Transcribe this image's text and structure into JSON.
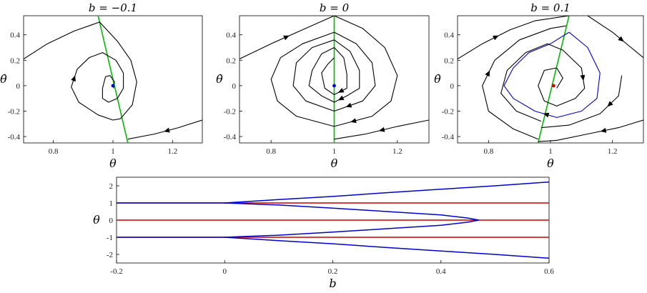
{
  "chart_data": [
    {
      "type": "line",
      "title": "b = −0.1",
      "xlabel": "θ",
      "ylabel": "θ̇",
      "xlim": [
        0.7,
        1.3
      ],
      "ylim": [
        -0.45,
        0.55
      ],
      "xticks": [
        "0.8",
        "1",
        "1.2"
      ],
      "yticks": [
        "-0.4",
        "-0.2",
        "0",
        "0.2",
        "0.4"
      ],
      "colors": {
        "trajectory": "#000000",
        "nullcline": "#00bb00",
        "equilibrium": "#0000cc"
      },
      "nullcline": [
        [
          0.95,
          0.55
        ],
        [
          1.05,
          -0.45
        ]
      ],
      "equilibrium": {
        "x": 1.0,
        "y": 0.0,
        "color": "#0000cc"
      },
      "series": [
        {
          "points": [
            [
              0.7,
              0.21
            ],
            [
              0.78,
              0.33
            ],
            [
              0.87,
              0.43
            ],
            [
              0.955,
              0.5
            ],
            [
              1.015,
              0.35
            ],
            [
              1.06,
              0.2
            ],
            [
              1.08,
              0.03
            ],
            [
              1.065,
              -0.15
            ],
            [
              1.025,
              -0.26
            ],
            [
              1.0,
              -0.27
            ],
            [
              0.95,
              -0.23
            ],
            [
              0.885,
              -0.13
            ],
            [
              0.86,
              -0.01
            ],
            [
              0.88,
              0.13
            ],
            [
              0.92,
              0.22
            ],
            [
              0.965,
              0.26
            ],
            [
              1.01,
              0.2
            ],
            [
              1.035,
              0.1
            ],
            [
              1.035,
              -0.02
            ],
            [
              1.015,
              -0.1
            ],
            [
              0.985,
              -0.13
            ],
            [
              0.965,
              -0.1
            ],
            [
              0.965,
              -0.02
            ],
            [
              0.975,
              0.07
            ],
            [
              0.99,
              0.08
            ],
            [
              1.005,
              0.03
            ],
            [
              1.002,
              -0.02
            ]
          ]
        },
        {
          "points": [
            [
              1.3,
              -0.27
            ],
            [
              1.22,
              -0.33
            ],
            [
              1.14,
              -0.38
            ],
            [
              1.05,
              -0.42
            ]
          ]
        }
      ]
    },
    {
      "type": "line",
      "title": "b = 0",
      "xlabel": "θ",
      "ylabel": "θ̇",
      "xlim": [
        0.7,
        1.3
      ],
      "ylim": [
        -0.45,
        0.55
      ],
      "xticks": [
        "0.8",
        "1",
        "1.2"
      ],
      "yticks": [
        "-0.4",
        "-0.2",
        "0",
        "0.2",
        "0.4"
      ],
      "colors": {
        "trajectory": "#000000",
        "nullcline": "#00bb00",
        "equilibrium": "#0000cc"
      },
      "nullcline": [
        [
          1.0,
          0.55
        ],
        [
          1.0,
          -0.45
        ]
      ],
      "equilibrium": {
        "x": 1.0,
        "y": 0.0,
        "color": "#0000cc"
      },
      "series": [
        {
          "points": [
            [
              0.7,
              0.21
            ],
            [
              0.8,
              0.33
            ],
            [
              0.9,
              0.44
            ],
            [
              1.0,
              0.55
            ]
          ]
        },
        {
          "points": [
            [
              1.0,
              0.55
            ],
            [
              1.09,
              0.45
            ],
            [
              1.16,
              0.3
            ],
            [
              1.2,
              0.08
            ],
            [
              1.18,
              -0.12
            ],
            [
              1.12,
              -0.24
            ],
            [
              1.0,
              -0.32
            ],
            [
              0.88,
              -0.24
            ],
            [
              0.82,
              -0.12
            ],
            [
              0.8,
              0.05
            ],
            [
              0.83,
              0.22
            ],
            [
              0.9,
              0.33
            ],
            [
              1.0,
              0.42
            ]
          ]
        },
        {
          "points": [
            [
              1.0,
              0.42
            ],
            [
              1.07,
              0.33
            ],
            [
              1.12,
              0.18
            ],
            [
              1.13,
              0.0
            ],
            [
              1.09,
              -0.12
            ],
            [
              1.0,
              -0.2
            ],
            [
              0.91,
              -0.12
            ],
            [
              0.87,
              0.0
            ],
            [
              0.88,
              0.18
            ],
            [
              0.93,
              0.3
            ],
            [
              1.0,
              0.36
            ]
          ]
        },
        {
          "points": [
            [
              1.0,
              0.36
            ],
            [
              1.05,
              0.27
            ],
            [
              1.08,
              0.12
            ],
            [
              1.08,
              -0.02
            ],
            [
              1.04,
              -0.08
            ],
            [
              1.0,
              -0.13
            ],
            [
              0.96,
              -0.08
            ],
            [
              0.92,
              0.0
            ],
            [
              0.93,
              0.12
            ],
            [
              0.96,
              0.25
            ],
            [
              1.0,
              0.3
            ]
          ]
        },
        {
          "points": [
            [
              1.0,
              0.3
            ],
            [
              1.03,
              0.22
            ],
            [
              1.04,
              0.09
            ],
            [
              1.04,
              -0.02
            ],
            [
              1.0,
              -0.07
            ],
            [
              0.97,
              -0.02
            ],
            [
              0.96,
              0.1
            ],
            [
              0.98,
              0.17
            ],
            [
              1.0,
              0.22
            ]
          ]
        },
        {
          "points": [
            [
              1.3,
              -0.27
            ],
            [
              1.2,
              -0.32
            ],
            [
              1.1,
              -0.38
            ],
            [
              1.0,
              -0.42
            ]
          ]
        }
      ]
    },
    {
      "type": "line",
      "title": "b = 0.1",
      "xlabel": "θ",
      "ylabel": "θ̇",
      "xlim": [
        0.7,
        1.3
      ],
      "ylim": [
        -0.45,
        0.55
      ],
      "xticks": [
        "0.8",
        "1",
        "1.2"
      ],
      "yticks": [
        "-0.4",
        "-0.2",
        "0",
        "0.2",
        "0.4"
      ],
      "colors": {
        "trajectory": "#000000",
        "nullcline": "#00bb00",
        "equilibrium": "#cc0000",
        "separatrix": "#0000cc"
      },
      "nullcline": [
        [
          0.96,
          -0.45
        ],
        [
          1.06,
          0.55
        ]
      ],
      "equilibrium": {
        "x": 1.01,
        "y": 0.0,
        "color": "#cc0000"
      },
      "series": [
        {
          "points": [
            [
              0.7,
              0.21
            ],
            [
              0.78,
              0.33
            ],
            [
              0.87,
              0.44
            ],
            [
              0.95,
              0.51
            ],
            [
              1.06,
              0.55
            ]
          ]
        },
        {
          "points": [
            [
              1.12,
              0.55
            ],
            [
              1.2,
              0.42
            ],
            [
              1.26,
              0.3
            ],
            [
              1.3,
              0.22
            ]
          ]
        },
        {
          "points": [
            [
              1.06,
              0.42
            ],
            [
              1.12,
              0.3
            ],
            [
              1.16,
              0.1
            ],
            [
              1.15,
              -0.1
            ],
            [
              1.1,
              -0.2
            ],
            [
              1.02,
              -0.25
            ],
            [
              0.95,
              -0.2
            ],
            [
              0.88,
              -0.1
            ],
            [
              0.85,
              0.0
            ],
            [
              0.88,
              0.14
            ],
            [
              0.93,
              0.26
            ],
            [
              1.0,
              0.33
            ],
            [
              1.06,
              0.42
            ]
          ],
          "color": "#0000cc"
        },
        {
          "points": [
            [
              1.3,
              -0.27
            ],
            [
              1.22,
              -0.33
            ],
            [
              1.12,
              -0.38
            ],
            [
              1.02,
              -0.43
            ],
            [
              0.96,
              -0.44
            ]
          ]
        },
        {
          "points": [
            [
              0.96,
              -0.42
            ],
            [
              0.88,
              -0.34
            ],
            [
              0.8,
              -0.2
            ],
            [
              0.78,
              0.0
            ],
            [
              0.82,
              0.2
            ],
            [
              0.9,
              0.36
            ],
            [
              1.0,
              0.45
            ],
            [
              1.05,
              0.47
            ]
          ]
        },
        {
          "points": [
            [
              1.23,
              0.08
            ],
            [
              1.22,
              -0.08
            ],
            [
              1.16,
              -0.22
            ],
            [
              1.06,
              -0.31
            ],
            [
              0.97,
              -0.33
            ]
          ]
        },
        {
          "points": [
            [
              0.97,
              -0.28
            ],
            [
              0.89,
              -0.2
            ],
            [
              0.84,
              -0.06
            ],
            [
              0.86,
              0.12
            ],
            [
              0.92,
              0.26
            ],
            [
              0.99,
              0.33
            ],
            [
              1.04,
              0.28
            ],
            [
              1.1,
              0.14
            ],
            [
              1.11,
              -0.02
            ],
            [
              1.08,
              -0.1
            ],
            [
              1.02,
              -0.16
            ],
            [
              0.98,
              -0.12
            ],
            [
              0.96,
              0.0
            ],
            [
              0.98,
              0.12
            ],
            [
              1.02,
              0.14
            ],
            [
              1.04,
              0.06
            ],
            [
              1.02,
              -0.02
            ]
          ]
        }
      ]
    },
    {
      "type": "line",
      "title": "",
      "xlabel": "b",
      "ylabel": "θ",
      "xlim": [
        -0.2,
        0.6
      ],
      "ylim": [
        -2.5,
        2.5
      ],
      "xticks": [
        "-0.2",
        "0",
        "0.2",
        "0.4",
        "0.6"
      ],
      "yticks": [
        "-2",
        "-1",
        "0",
        "1",
        "2"
      ],
      "series": [
        {
          "color": "#cc0000",
          "points": [
            [
              -0.2,
              1
            ],
            [
              0.6,
              1
            ]
          ]
        },
        {
          "color": "#cc0000",
          "points": [
            [
              -0.2,
              0
            ],
            [
              0.6,
              0
            ]
          ]
        },
        {
          "color": "#cc0000",
          "points": [
            [
              -0.2,
              -1
            ],
            [
              0.6,
              -1
            ]
          ]
        },
        {
          "color": "#0000cc",
          "points": [
            [
              -0.2,
              1
            ],
            [
              0.0,
              1
            ],
            [
              0.05,
              1.1
            ],
            [
              0.1,
              1.2
            ],
            [
              0.2,
              1.38
            ],
            [
              0.3,
              1.6
            ],
            [
              0.4,
              1.8
            ],
            [
              0.5,
              2.0
            ],
            [
              0.6,
              2.22
            ]
          ]
        },
        {
          "color": "#0000cc",
          "points": [
            [
              -0.2,
              -1
            ],
            [
              0.0,
              -1
            ],
            [
              0.05,
              -1.1
            ],
            [
              0.1,
              -1.2
            ],
            [
              0.2,
              -1.38
            ],
            [
              0.3,
              -1.6
            ],
            [
              0.4,
              -1.8
            ],
            [
              0.5,
              -2.0
            ],
            [
              0.6,
              -2.22
            ]
          ]
        },
        {
          "color": "#0000cc",
          "points": [
            [
              0.0,
              1
            ],
            [
              0.1,
              0.88
            ],
            [
              0.2,
              0.7
            ],
            [
              0.3,
              0.5
            ],
            [
              0.4,
              0.3
            ],
            [
              0.45,
              0.12
            ],
            [
              0.47,
              0.0
            ],
            [
              0.45,
              -0.12
            ],
            [
              0.4,
              -0.3
            ],
            [
              0.3,
              -0.5
            ],
            [
              0.2,
              -0.7
            ],
            [
              0.1,
              -0.88
            ],
            [
              0.0,
              -1
            ]
          ]
        }
      ]
    }
  ]
}
